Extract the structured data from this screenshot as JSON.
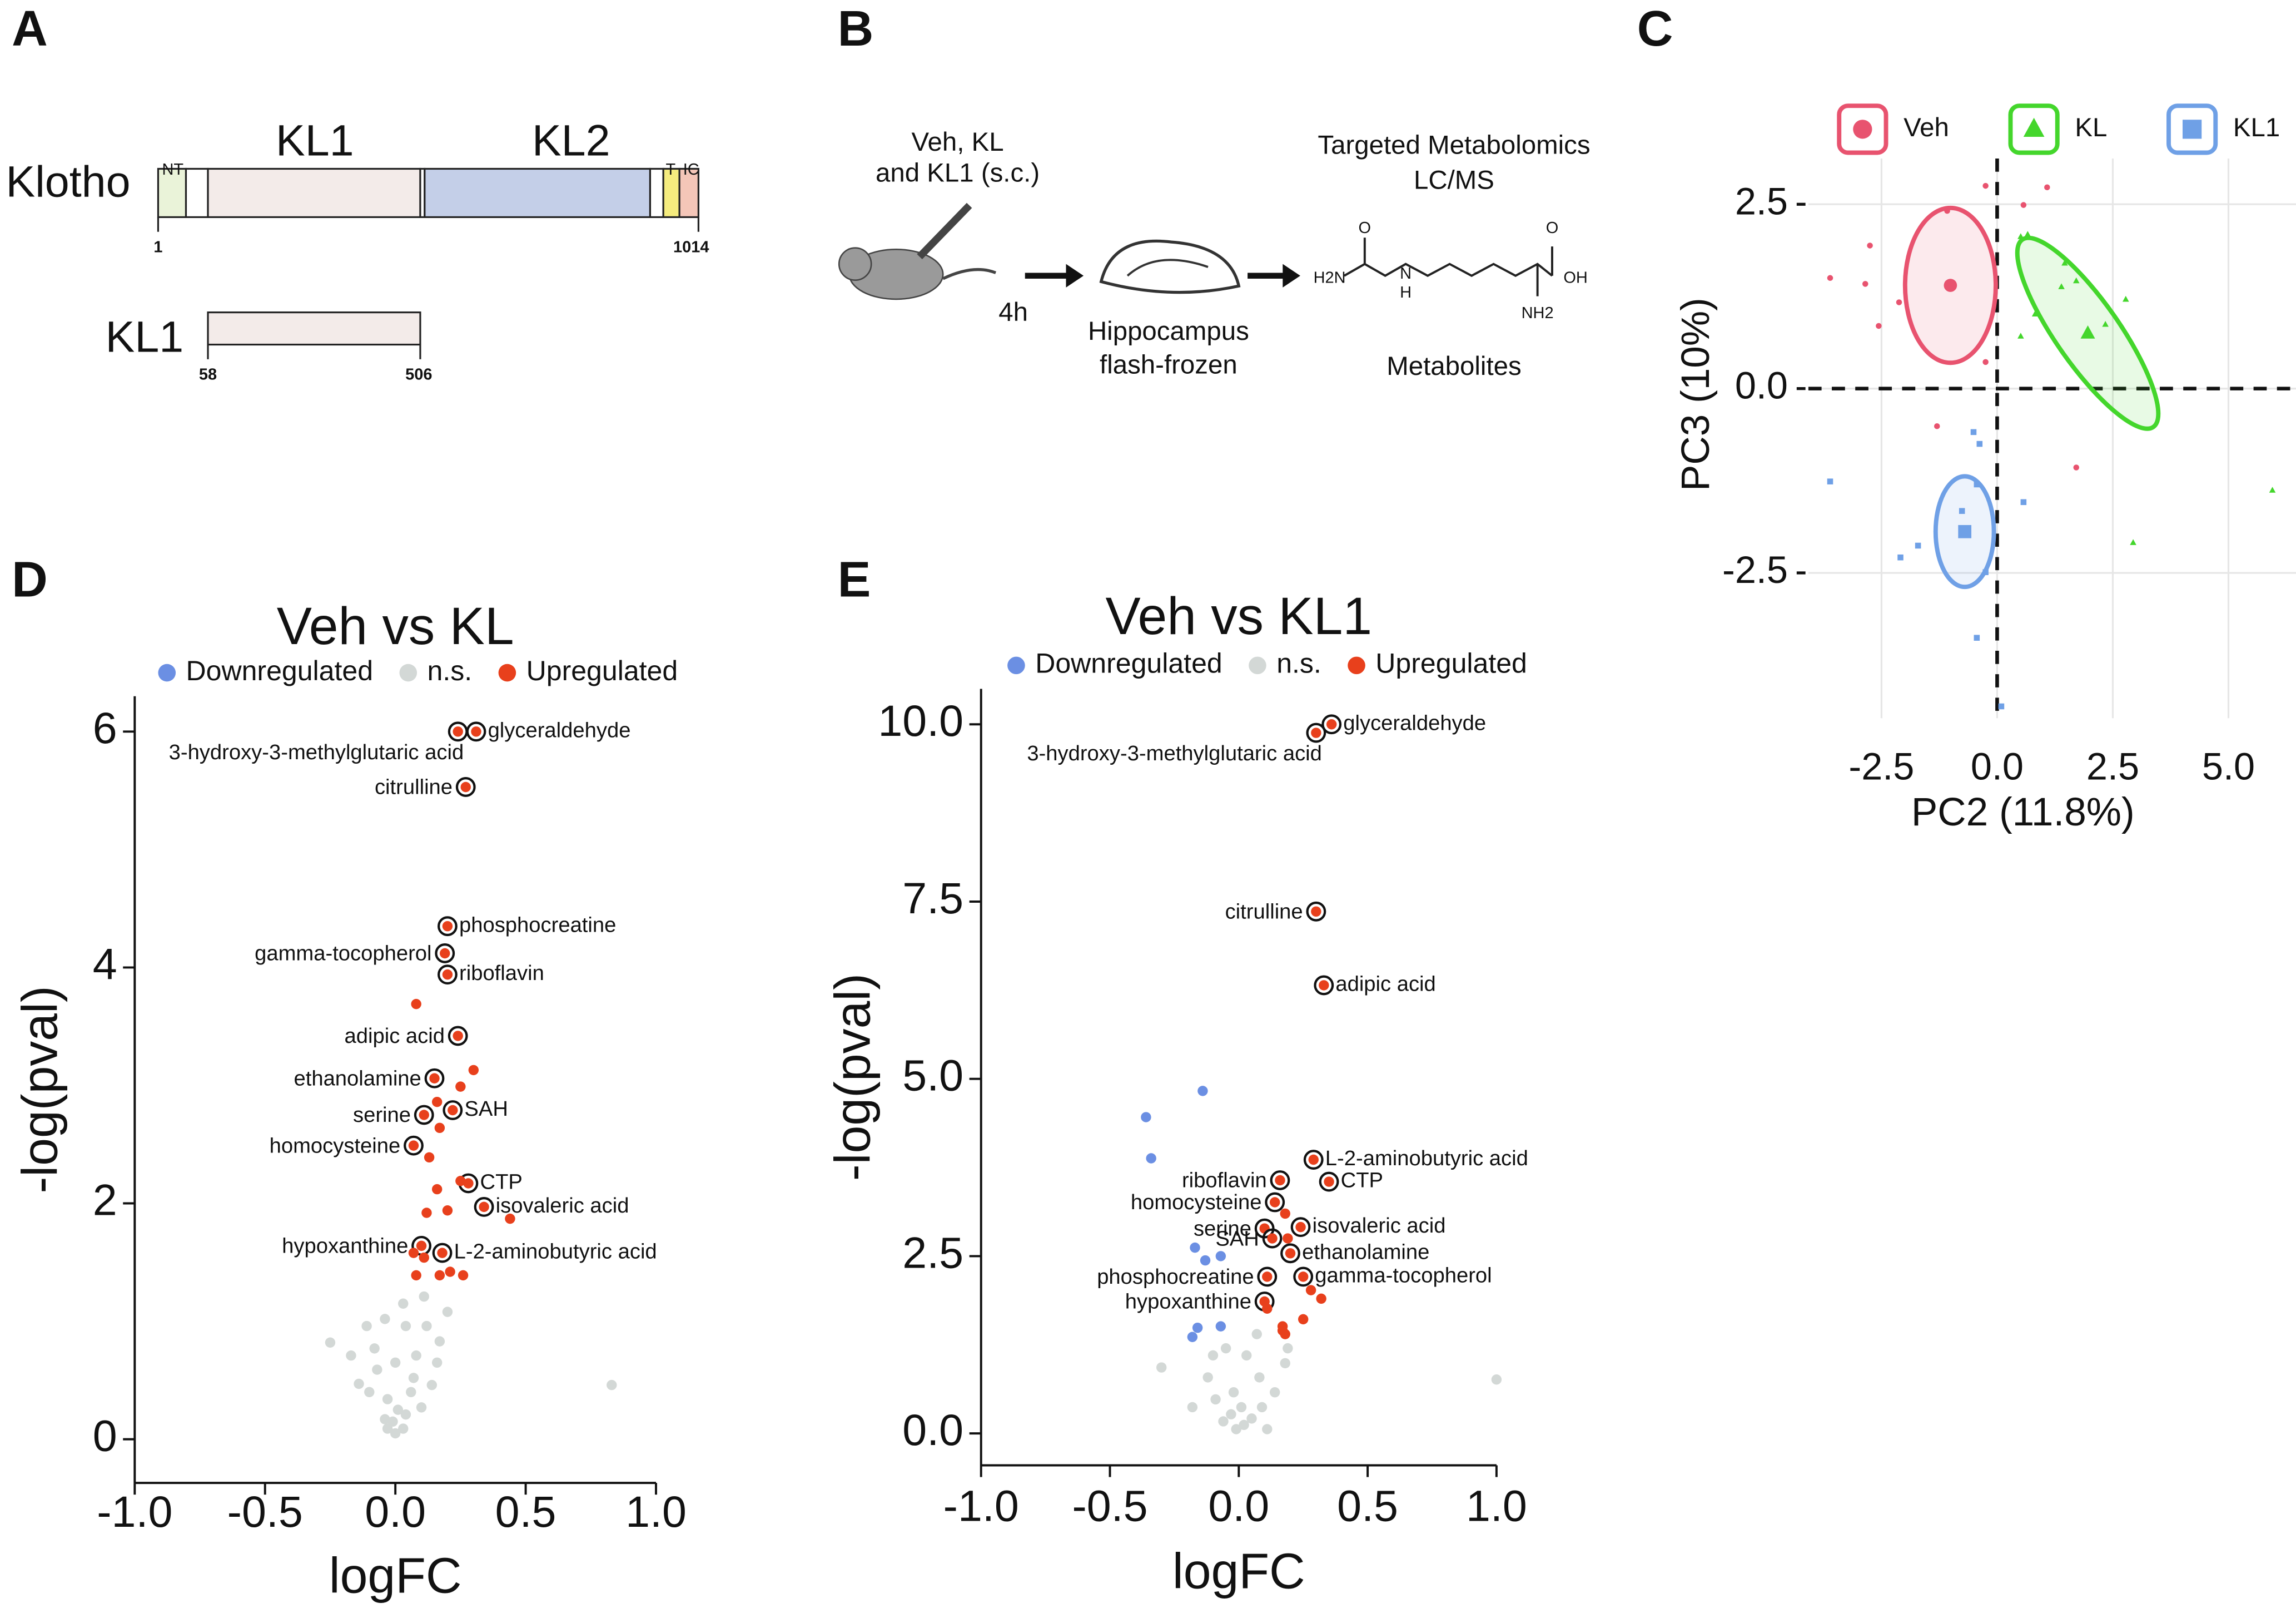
{
  "panel_labels": [
    "A",
    "B",
    "C",
    "D",
    "E"
  ],
  "diagram_a": {
    "protein": "Klotho",
    "domain_1": "KL1",
    "domain_2": "KL2",
    "nt": "NT",
    "t": "T",
    "ic": "IC",
    "start": "1",
    "end": "1014",
    "fragment": "KL1",
    "fragment_start": "58",
    "fragment_end": "506"
  },
  "diagram_b": {
    "treatment_1": "Veh, KL",
    "treatment_2": "and KL1 (s.c.)",
    "time": "4h",
    "tissue_1": "Hippocampus",
    "tissue_2": "flash-frozen",
    "method_1": "Targeted Metabolomics",
    "method_2": "LC/MS",
    "output": "Metabolites",
    "chem_labels": [
      "O",
      "O",
      "H2N",
      "N",
      "H",
      "OH",
      "NH2"
    ]
  },
  "chart_data": [
    {
      "type": "scatter",
      "x_label": "PC2 (11.8%)",
      "y_label": "PC3 (10%)",
      "xlim": [
        -4.08,
        6.46
      ],
      "ylim": [
        -4.47,
        3.12
      ],
      "xticks": [
        -2.5,
        {
          "value": 0,
          "label": "0.0"
        },
        2.5,
        {
          "value": 5,
          "label": "5.0"
        }
      ],
      "yticks": [
        -2.5,
        {
          "value": 0,
          "label": "0.0"
        },
        2.5
      ],
      "grid": true,
      "zero_lines": true,
      "axis_lines": false,
      "legend_position": "top",
      "series": [
        {
          "name": "Veh",
          "color": "#e8536f",
          "marker": "circle",
          "x": [
            -3.61,
            -2.75,
            -2.85,
            -2.56,
            -2.12,
            -1.08,
            -0.25,
            0.57,
            1.08,
            -0.25,
            -1.3,
            1.71
          ],
          "values": [
            1.5,
            1.94,
            1.42,
            0.85,
            1.17,
            2.41,
            2.75,
            2.49,
            2.73,
            0.36,
            -0.51,
            -1.07
          ],
          "ellipse": {
            "cx": -1.01,
            "cy": 1.4,
            "width": 0.98,
            "height": 1.05,
            "angle": 0
          }
        },
        {
          "name": "KL",
          "color": "#44d62c",
          "marker": "triangle",
          "x": [
            0.51,
            0.66,
            1.46,
            1.71,
            0.82,
            0.51,
            2.78,
            2.34,
            5.95,
            2.94,
            1.39
          ],
          "values": [
            2.06,
            2.09,
            1.7,
            1.46,
            1.01,
            0.71,
            1.21,
            0.87,
            -1.38,
            -2.09,
            1.38
          ],
          "ellipse": {
            "cx": 1.96,
            "cy": 0.75,
            "width": 2.47,
            "height": 0.43,
            "angle": 55
          }
        },
        {
          "name": "KL1",
          "color": "#6fa0e6",
          "marker": "square",
          "x": [
            -3.61,
            -2.09,
            -1.71,
            -0.76,
            -0.51,
            -0.38,
            -0.44,
            0.57,
            -0.44,
            0.09,
            -0.25
          ],
          "values": [
            -1.26,
            -2.29,
            -2.13,
            -1.66,
            -0.59,
            -0.75,
            -1.3,
            -1.54,
            -3.38,
            -4.31,
            -2.49
          ],
          "ellipse": {
            "cx": -0.7,
            "cy": -1.94,
            "width": 0.63,
            "height": 0.75,
            "angle": 0
          }
        }
      ]
    },
    {
      "type": "scatter",
      "title": "Veh vs KL",
      "x_label": "logFC",
      "y_label": "-log(pval)",
      "xlim": [
        -1,
        1
      ],
      "ylim": [
        -0.37,
        6.3
      ],
      "xticks": [
        {
          "value": -1,
          "label": "-1.0"
        },
        -0.5,
        {
          "value": 0,
          "label": "0.0"
        },
        0.5,
        {
          "value": 1,
          "label": "1.0"
        }
      ],
      "yticks": [
        0,
        2,
        4,
        6
      ],
      "grid": false,
      "zero_lines": false,
      "axis_lines": true,
      "legend_position": "top",
      "series": [
        {
          "name": "Downregulated",
          "color": "#6b8fe3",
          "marker": "circle",
          "x": [],
          "values": []
        },
        {
          "name": "n.s.",
          "color": "#d3d8d6",
          "marker": "circle",
          "x": [
            -0.25,
            0.83,
            -0.14,
            -0.04,
            0.04,
            0.11,
            -0.08,
            0,
            0.08,
            0.17,
            -0.03,
            0.01,
            -0.01,
            0.03,
            -0.04,
            0.06,
            -0.07,
            0.14,
            0.1,
            -0.11,
            0.2,
            -0.17,
            0.07,
            0.12,
            0.03,
            -0.03,
            0,
            0.04,
            0.16,
            -0.1
          ],
          "values": [
            0.82,
            0.46,
            0.47,
            1.02,
            0.96,
            1.21,
            0.77,
            0.65,
            0.71,
            0.83,
            0.34,
            0.25,
            0.15,
            0.09,
            0.17,
            0.4,
            0.59,
            0.46,
            0.27,
            0.96,
            1.08,
            0.71,
            0.52,
            0.96,
            1.15,
            0.09,
            0.05,
            0.21,
            0.65,
            0.4
          ]
        },
        {
          "name": "Upregulated",
          "color": "#e8401c",
          "marker": "circle",
          "x": [
            0.31,
            0.24,
            0.27,
            0.2,
            0.19,
            0.2,
            0.24,
            0.15,
            0.22,
            0.11,
            0.07,
            0.28,
            0.34,
            0.1,
            0.18,
            0.08,
            0.3,
            0.25,
            0.16,
            0.17,
            0.13,
            0.25,
            0.16,
            0.12,
            0.2,
            0.44,
            0.07,
            0.11,
            0.17,
            0.08,
            0.26,
            0.21
          ],
          "values": [
            6.0,
            6.0,
            5.53,
            4.35,
            4.12,
            3.94,
            3.42,
            3.06,
            2.79,
            2.75,
            2.49,
            2.17,
            1.97,
            1.64,
            1.58,
            3.69,
            3.13,
            2.99,
            2.86,
            2.64,
            2.39,
            2.19,
            2.12,
            1.92,
            1.94,
            1.87,
            1.58,
            1.54,
            1.39,
            1.39,
            1.39,
            1.42
          ],
          "point_labels": [
            "glyceraldehyde",
            "3-hydroxy-3-methylglutaric acid",
            "citrulline",
            "phosphocreatine",
            "gamma-tocopherol",
            "riboflavin",
            "adipic acid",
            "ethanolamine",
            "SAH",
            "serine",
            "homocysteine",
            "CTP",
            "isovaleric acid",
            "hypoxanthine",
            "L-2-aminobutyric acid",
            null,
            null,
            null,
            null,
            null,
            null,
            null,
            null,
            null,
            null,
            null,
            null,
            null,
            null,
            null,
            null,
            null
          ]
        }
      ]
    },
    {
      "type": "scatter",
      "title": "Veh vs KL1",
      "x_label": "logFC",
      "y_label": "-log(pval)",
      "xlim": [
        -1,
        1
      ],
      "ylim": [
        -0.45,
        10.5
      ],
      "xticks": [
        {
          "value": -1,
          "label": "-1.0"
        },
        -0.5,
        {
          "value": 0,
          "label": "0.0"
        },
        0.5,
        {
          "value": 1,
          "label": "1.0"
        }
      ],
      "yticks": [
        {
          "value": 0,
          "label": "0.0"
        },
        2.5,
        {
          "value": 5,
          "label": "5.0"
        },
        7.5,
        {
          "value": 10,
          "label": "10.0"
        }
      ],
      "grid": false,
      "zero_lines": false,
      "axis_lines": true,
      "legend_position": "top",
      "series": [
        {
          "name": "Downregulated",
          "color": "#6b8fe3",
          "marker": "circle",
          "x": [
            -0.14,
            -0.36,
            -0.34,
            -0.17,
            -0.07,
            -0.13,
            -0.16,
            -0.18,
            -0.07
          ],
          "values": [
            4.83,
            4.46,
            3.88,
            2.62,
            2.5,
            2.44,
            1.49,
            1.36,
            1.51
          ]
        },
        {
          "name": "n.s.",
          "color": "#d3d8d6",
          "marker": "circle",
          "x": [
            1.0,
            -0.3,
            -0.05,
            0.03,
            0.08,
            -0.02,
            0.01,
            -0.03,
            0.05,
            -0.09,
            0.14,
            0.18,
            -0.12,
            0.02,
            -0.01,
            0.09,
            -0.06,
            -0.18,
            0.19,
            0.07,
            -0.1,
            0.11
          ],
          "values": [
            0.76,
            0.93,
            1.2,
            1.1,
            0.79,
            0.58,
            0.37,
            0.27,
            0.21,
            0.48,
            0.58,
            0.99,
            0.79,
            0.12,
            0.06,
            0.37,
            0.17,
            0.37,
            1.2,
            1.4,
            1.1,
            0.06
          ]
        },
        {
          "name": "Upregulated",
          "color": "#e8401c",
          "marker": "circle",
          "x": [
            0.36,
            0.3,
            0.3,
            0.33,
            0.29,
            0.35,
            0.16,
            0.14,
            0.24,
            0.1,
            0.13,
            0.2,
            0.25,
            0.11,
            0.1,
            0.18,
            0.19,
            0.28,
            0.32,
            0.25,
            0.17,
            0.18,
            0.17,
            0.11
          ],
          "values": [
            10.0,
            9.88,
            7.36,
            6.32,
            3.86,
            3.55,
            3.57,
            3.26,
            2.91,
            2.89,
            2.75,
            2.54,
            2.21,
            2.21,
            1.86,
            3.1,
            2.75,
            2.02,
            1.9,
            1.61,
            1.51,
            1.4,
            1.45,
            1.76
          ],
          "point_labels": [
            "glyceraldehyde",
            "3-hydroxy-3-methylglutaric acid",
            "citrulline",
            "adipic acid",
            "L-2-aminobutyric acid",
            "CTP",
            "riboflavin",
            "homocysteine",
            "isovaleric acid",
            "serine",
            "SAH",
            "ethanolamine",
            "gamma-tocopherol",
            "phosphocreatine",
            "hypoxanthine",
            null,
            null,
            null,
            null,
            null,
            null,
            null,
            null,
            null
          ]
        }
      ]
    }
  ]
}
